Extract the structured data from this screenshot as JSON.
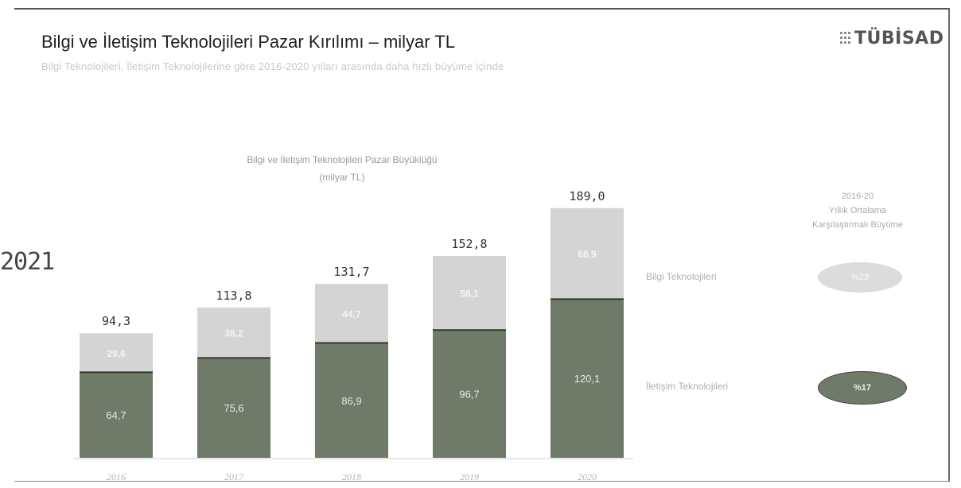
{
  "header": {
    "title": "Bilgi ve İletişim Teknolojileri Pazar Kırılımı – milyar TL",
    "subtitle": "Bilgi Teknolojileri, İletişim Teknolojilerine göre 2016-2020 yılları arasında daha hızlı büyüme içinde",
    "logo_text": "TÜBİSAD",
    "stamp_text": "2021"
  },
  "chart_data": {
    "type": "bar",
    "stacked": true,
    "title_line1": "Bilgi ve İletişim Teknolojileri Pazar Büyüklüğü",
    "title_line2": "(milyar TL)",
    "categories": [
      "2016",
      "2017",
      "2018",
      "2019",
      "2020"
    ],
    "series": [
      {
        "name": "İletişim Teknolojileri",
        "values": [
          64.7,
          75.6,
          86.9,
          96.7,
          120.1
        ],
        "labels": [
          "64,7",
          "75,6",
          "86,9",
          "96,7",
          "120,1"
        ],
        "color": "#6f7a69"
      },
      {
        "name": "Bilgi Teknolojileri",
        "values": [
          29.6,
          38.2,
          44.7,
          56.1,
          68.9
        ],
        "labels": [
          "29,6",
          "38,2",
          "44,7",
          "56,1",
          "68,9"
        ],
        "color": "#d4d4d4"
      }
    ],
    "totals": [
      94.3,
      113.8,
      131.7,
      152.8,
      189.0
    ],
    "total_labels": [
      "94,3",
      "113,8",
      "131,7",
      "152,8",
      "189,0"
    ],
    "ylim": [
      0,
      200
    ],
    "grid": false
  },
  "growth": {
    "header_line1": "2016-20",
    "header_line2": "Yıllık Ortalama",
    "header_line3": "Karşılaştırmalı Büyüme",
    "bilgi": {
      "label": "Bilgi Teknolojileri",
      "value": "%23"
    },
    "iletisim": {
      "label": "İletişim Teknolojileri",
      "value": "%17"
    }
  },
  "colors": {
    "dark": "#6f7a69",
    "light": "#d4d4d4"
  }
}
